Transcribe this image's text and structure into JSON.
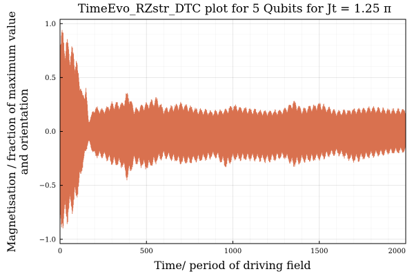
{
  "chart_data": {
    "type": "line",
    "title": "TimeEvo_RZstr_DTC plot for 5 Qubits for Jt = 1.25 π",
    "xlabel": "Time/ period of driving field",
    "ylabel_line1": "Magnetisation / fraction of maximum value",
    "ylabel_line2": "and orientation",
    "xlim": [
      0,
      2000
    ],
    "ylim": [
      -1.04,
      1.04
    ],
    "x_ticks": [
      0,
      500,
      1000,
      1500,
      2000
    ],
    "x_tick_labels": [
      "0",
      "500",
      "1000",
      "1500",
      "2000"
    ],
    "y_ticks": [
      -1.0,
      -0.5,
      0.0,
      0.5,
      1.0
    ],
    "y_tick_labels": [
      "−1.0",
      "−0.5",
      "0.0",
      "0.5",
      "1.0"
    ],
    "grid": true,
    "legend": "none",
    "series_color": "#d9714f",
    "envelope": {
      "x": [
        0,
        10,
        40,
        80,
        110,
        130,
        150,
        165,
        200,
        250,
        300,
        360,
        390,
        430,
        500,
        560,
        600,
        700,
        800,
        900,
        960,
        1000,
        1100,
        1200,
        1300,
        1350,
        1400,
        1500,
        1600,
        1700,
        1800,
        1900,
        2000
      ],
      "upper": [
        1.0,
        0.98,
        0.88,
        0.8,
        0.58,
        0.35,
        0.45,
        0.1,
        0.24,
        0.22,
        0.28,
        0.28,
        0.4,
        0.22,
        0.28,
        0.33,
        0.22,
        0.28,
        0.22,
        0.2,
        0.22,
        0.26,
        0.22,
        0.2,
        0.22,
        0.3,
        0.22,
        0.28,
        0.2,
        0.22,
        0.24,
        0.22,
        0.22
      ],
      "lower": [
        -0.98,
        -0.95,
        -0.88,
        -0.75,
        -0.55,
        -0.35,
        -0.2,
        -0.1,
        -0.25,
        -0.25,
        -0.32,
        -0.35,
        -0.48,
        -0.3,
        -0.38,
        -0.3,
        -0.25,
        -0.32,
        -0.3,
        -0.25,
        -0.35,
        -0.28,
        -0.28,
        -0.3,
        -0.26,
        -0.35,
        -0.3,
        -0.28,
        -0.22,
        -0.3,
        -0.25,
        -0.22,
        -0.2
      ]
    }
  }
}
